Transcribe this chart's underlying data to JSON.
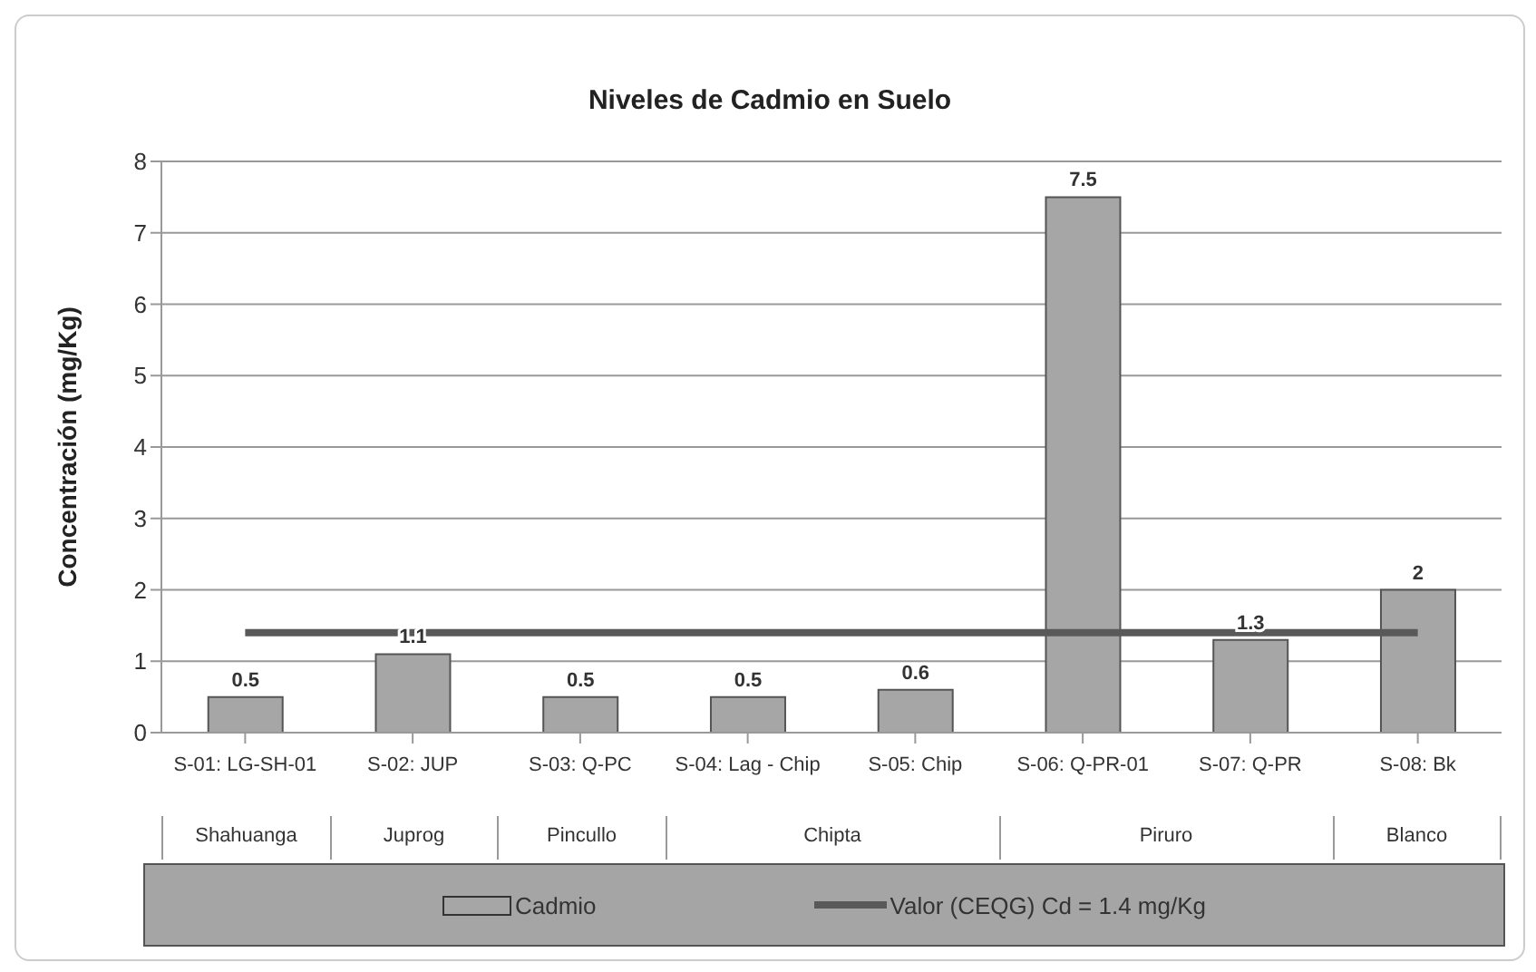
{
  "chart_data": {
    "type": "bar",
    "title": "Niveles de Cadmio en Suelo",
    "ylabel": "Concentración (mg/Kg)",
    "categories": [
      "S-01: LG-SH-01",
      "S-02: JUP",
      "S-03: Q-PC",
      "S-04: Lag - Chip",
      "S-05: Chip",
      "S-06: Q-PR-01",
      "S-07: Q-PR",
      "S-08: Bk"
    ],
    "series": [
      {
        "name": "Cadmio",
        "color": "#a6a6a6",
        "values": [
          0.5,
          1.1,
          0.5,
          0.5,
          0.6,
          7.5,
          1.3,
          2
        ],
        "value_labels": [
          "0.5",
          "1.1",
          "0.5",
          "0.5",
          "0.6",
          "7.5",
          "1.3",
          "2"
        ]
      },
      {
        "name": "Valor (CEQG) Cd = 1.4 mg/Kg",
        "type": "line",
        "color": "#595959",
        "values": [
          1.4,
          1.4,
          1.4,
          1.4,
          1.4,
          1.4,
          1.4,
          1.4
        ]
      }
    ],
    "annotations": [
      "Shahuanga",
      "Juprog",
      "Pincullo",
      "Chipta",
      "Piruro",
      "Blanco"
    ],
    "ylim": [
      0,
      8
    ],
    "yticks": [
      0,
      1,
      2,
      3,
      4,
      5,
      6,
      7,
      8
    ],
    "grid": "y",
    "legend": "bottom",
    "marker": "none"
  }
}
